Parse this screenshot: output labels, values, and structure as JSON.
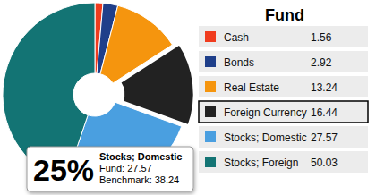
{
  "chart_data": {
    "type": "pie",
    "title": "Fund",
    "categories": [
      "Cash",
      "Bonds",
      "Real Estate",
      "Foreign Currency",
      "Stocks; Domestic",
      "Stocks; Foreign"
    ],
    "values": [
      1.56,
      2.92,
      13.24,
      16.44,
      27.57,
      50.03
    ],
    "colors": [
      "#f03c1e",
      "#1f3f8a",
      "#f5950e",
      "#222222",
      "#4a9fe0",
      "#137474"
    ],
    "legend": "right",
    "tooltip": {
      "percent": {
        "value": 25,
        "label": "25%"
      },
      "category": "Stocks; Domestic",
      "lines": [
        {
          "label": "Fund:",
          "value": 27.57
        },
        {
          "label": "Benchmark:",
          "value": 38.24
        }
      ]
    }
  }
}
